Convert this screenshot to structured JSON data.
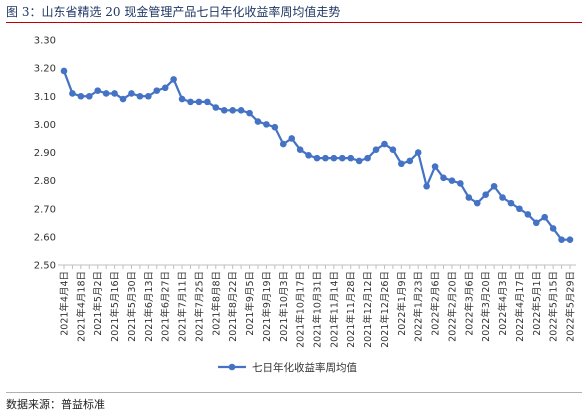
{
  "header": {
    "title": "图 3：山东省精选 20 现金管理产品七日年化收益率周均值走势"
  },
  "footer": {
    "source": "数据来源：普益标准"
  },
  "chart_data": {
    "type": "line",
    "ylim": [
      2.5,
      3.3
    ],
    "yticks": [
      "3.30",
      "3.20",
      "3.10",
      "3.00",
      "2.90",
      "2.80",
      "2.70",
      "2.60",
      "2.50"
    ],
    "ytick_values": [
      3.3,
      3.2,
      3.1,
      3.0,
      2.9,
      2.8,
      2.7,
      2.6,
      2.5
    ],
    "x": [
      "2021年4月4日",
      "2021年4月11日",
      "2021年4月18日",
      "2021年4月25日",
      "2021年5月2日",
      "2021年5月9日",
      "2021年5月16日",
      "2021年5月23日",
      "2021年5月30日",
      "2021年6月6日",
      "2021年6月13日",
      "2021年6月20日",
      "2021年6月27日",
      "2021年7月4日",
      "2021年7月11日",
      "2021年7月18日",
      "2021年7月25日",
      "2021年8月1日",
      "2021年8月8日",
      "2021年8月15日",
      "2021年8月22日",
      "2021年8月29日",
      "2021年9月5日",
      "2021年9月12日",
      "2021年9月19日",
      "2021年9月26日",
      "2021年10月3日",
      "2021年10月10日",
      "2021年10月17日",
      "2021年10月24日",
      "2021年10月31日",
      "2021年11月7日",
      "2021年11月14日",
      "2021年11月21日",
      "2021年11月28日",
      "2021年12月5日",
      "2021年12月12日",
      "2021年12月19日",
      "2021年12月26日",
      "2022年1月2日",
      "2022年1月9日",
      "2022年1月16日",
      "2022年1月23日",
      "2022年1月30日",
      "2022年2月6日",
      "2022年2月13日",
      "2022年2月20日",
      "2022年2月27日",
      "2022年3月6日",
      "2022年3月13日",
      "2022年3月20日",
      "2022年3月27日",
      "2022年4月3日",
      "2022年4月10日",
      "2022年4月17日",
      "2022年4月24日",
      "2022年5月1日",
      "2022年5月8日",
      "2022年5月15日",
      "2022年5月22日",
      "2022年5月29日"
    ],
    "xtick_labels": [
      "2021年4月4日",
      "2021年4月18日",
      "2021年5月2日",
      "2021年5月16日",
      "2021年5月30日",
      "2021年6月13日",
      "2021年6月27日",
      "2021年7月11日",
      "2021年7月25日",
      "2021年8月8日",
      "2021年8月22日",
      "2021年9月5日",
      "2021年9月19日",
      "2021年10月3日",
      "2021年10月17日",
      "2021年10月31日",
      "2021年11月14日",
      "2021年11月28日",
      "2021年12月12日",
      "2021年12月26日",
      "2022年1月9日",
      "2022年1月23日",
      "2022年2月6日",
      "2022年2月20日",
      "2022年3月6日",
      "2022年3月20日",
      "2022年4月3日",
      "2022年4月17日",
      "2022年5月1日",
      "2022年5月15日",
      "2022年5月29日"
    ],
    "series": [
      {
        "name": "七日年化收益率周均值",
        "color": "#4472c4",
        "values": [
          3.19,
          3.11,
          3.1,
          3.1,
          3.12,
          3.11,
          3.11,
          3.09,
          3.11,
          3.1,
          3.1,
          3.12,
          3.13,
          3.16,
          3.09,
          3.08,
          3.08,
          3.08,
          3.06,
          3.05,
          3.05,
          3.05,
          3.04,
          3.01,
          3.0,
          2.99,
          2.93,
          2.95,
          2.91,
          2.89,
          2.88,
          2.88,
          2.88,
          2.88,
          2.88,
          2.87,
          2.88,
          2.91,
          2.93,
          2.91,
          2.86,
          2.87,
          2.9,
          2.78,
          2.85,
          2.81,
          2.8,
          2.79,
          2.74,
          2.72,
          2.75,
          2.78,
          2.74,
          2.72,
          2.7,
          2.68,
          2.65,
          2.67,
          2.63,
          2.59,
          2.59
        ]
      }
    ],
    "legend": "bottom",
    "grid": false
  }
}
